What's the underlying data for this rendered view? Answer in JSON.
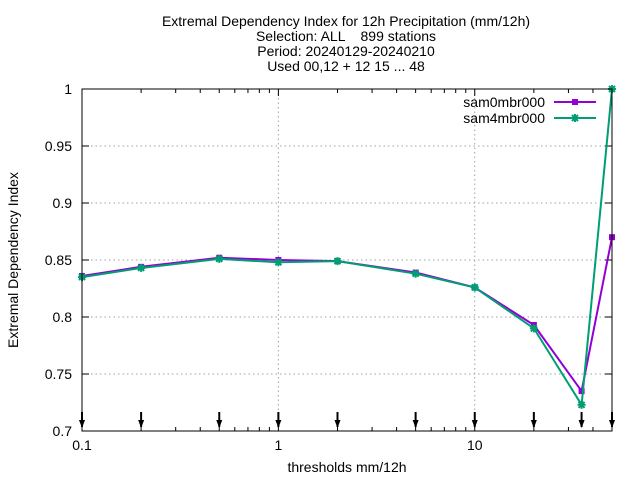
{
  "chart_data": {
    "type": "line",
    "title_lines": [
      "Extremal Dependency Index  for 12h Precipitation (mm/12h)",
      "Selection: ALL    899 stations",
      "Period: 20240129-20240210",
      "Used 00,12 + 12 15 ... 48"
    ],
    "xlabel": "thresholds mm/12h",
    "ylabel": "Extremal Dependency Index",
    "x_scale": "log",
    "xlim": [
      0.1,
      50
    ],
    "ylim": [
      0.7,
      1.0
    ],
    "x_tick_labels": [
      "0.1",
      "1",
      "10"
    ],
    "y_tick_labels": [
      "0.7",
      "0.75",
      "0.8",
      "0.85",
      "0.9",
      "0.95",
      "1"
    ],
    "grid": true,
    "legend_position": "top-right",
    "x": [
      0.1,
      0.2,
      0.5,
      1,
      2,
      5,
      10,
      20,
      35,
      50
    ],
    "series": [
      {
        "name": "sam0mbr000",
        "color": "#9400d3",
        "marker": "square",
        "values": [
          0.836,
          0.844,
          0.852,
          0.85,
          0.849,
          0.839,
          0.826,
          0.793,
          0.735,
          0.87
        ]
      },
      {
        "name": "sam4mbr000",
        "color": "#009e73",
        "marker": "star",
        "values": [
          0.835,
          0.843,
          0.851,
          0.848,
          0.849,
          0.838,
          0.826,
          0.79,
          0.723,
          1.0
        ]
      }
    ],
    "count_markers": "arrows"
  }
}
